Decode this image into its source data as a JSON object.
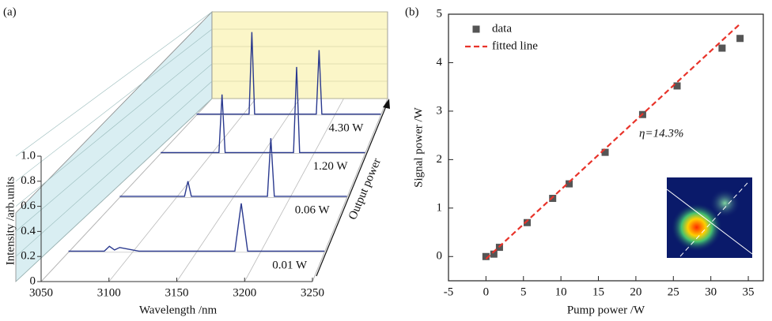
{
  "chart_data": [
    {
      "type": "waterfall",
      "panel_label": "(a)",
      "x_label": "Wavelength /nm",
      "y_label": "Intensity /arb.units",
      "depth_label": "Output power",
      "xlim": [
        3050,
        3250
      ],
      "xticks": [
        3050,
        3100,
        3150,
        3200,
        3250
      ],
      "ylim": [
        0,
        1
      ],
      "yticks": [
        0,
        0.2,
        0.4,
        0.6,
        0.8,
        {
          "value": 1,
          "label": "1.0"
        }
      ],
      "series": [
        {
          "name": "0.01 W",
          "color": "#2b3a8f",
          "x": [
            3050,
            3078,
            3082,
            3086,
            3090,
            3105,
            3180,
            3185,
            3190,
            3250
          ],
          "values": [
            0.01,
            0.01,
            0.05,
            0.02,
            0.04,
            0.01,
            0.01,
            0.41,
            0.01,
            0.01
          ]
        },
        {
          "name": "0.06 W",
          "color": "#2b3a8f",
          "x": [
            3050,
            3107,
            3110,
            3113,
            3180,
            3183,
            3186,
            3250
          ],
          "values": [
            0.01,
            0.01,
            0.15,
            0.01,
            0.01,
            0.55,
            0.01,
            0.01
          ]
        },
        {
          "name": "1.20 W",
          "color": "#2b3a8f",
          "x": [
            3050,
            3107,
            3110,
            3113,
            3180,
            3183,
            3186,
            3250
          ],
          "values": [
            0.01,
            0.01,
            0.6,
            0.01,
            0.01,
            0.88,
            0.01,
            0.01
          ]
        },
        {
          "name": "4.30 W",
          "color": "#2b3a8f",
          "x": [
            3050,
            3107,
            3110,
            3113,
            3180,
            3183,
            3186,
            3250
          ],
          "values": [
            0.01,
            0.01,
            0.92,
            0.01,
            0.01,
            0.72,
            0.01,
            0.01
          ]
        }
      ]
    },
    {
      "type": "scatter",
      "panel_label": "(b)",
      "x_label": "Pump power /W",
      "y_label": "Signal power /W",
      "annotation": "η=14.3%",
      "xlim": [
        -5,
        37
      ],
      "xticks": [
        -5,
        0,
        5,
        10,
        15,
        20,
        25,
        30,
        35
      ],
      "ylim": [
        -0.5,
        5
      ],
      "yticks": [
        0,
        1,
        2,
        3,
        4,
        5
      ],
      "series": [
        {
          "name": "data",
          "color": "#555555",
          "x": [
            0,
            1.05,
            1.8,
            5.5,
            8.9,
            11.1,
            15.9,
            20.9,
            25.5,
            31.5,
            33.9
          ],
          "values": [
            0,
            0.05,
            0.19,
            0.7,
            1.2,
            1.5,
            2.15,
            2.93,
            3.52,
            4.3,
            4.5
          ]
        },
        {
          "name": "fitted line",
          "color": "#e8332a",
          "dashed": true,
          "x": [
            0,
            33.9
          ],
          "values": [
            -0.05,
            4.8
          ]
        }
      ]
    }
  ]
}
